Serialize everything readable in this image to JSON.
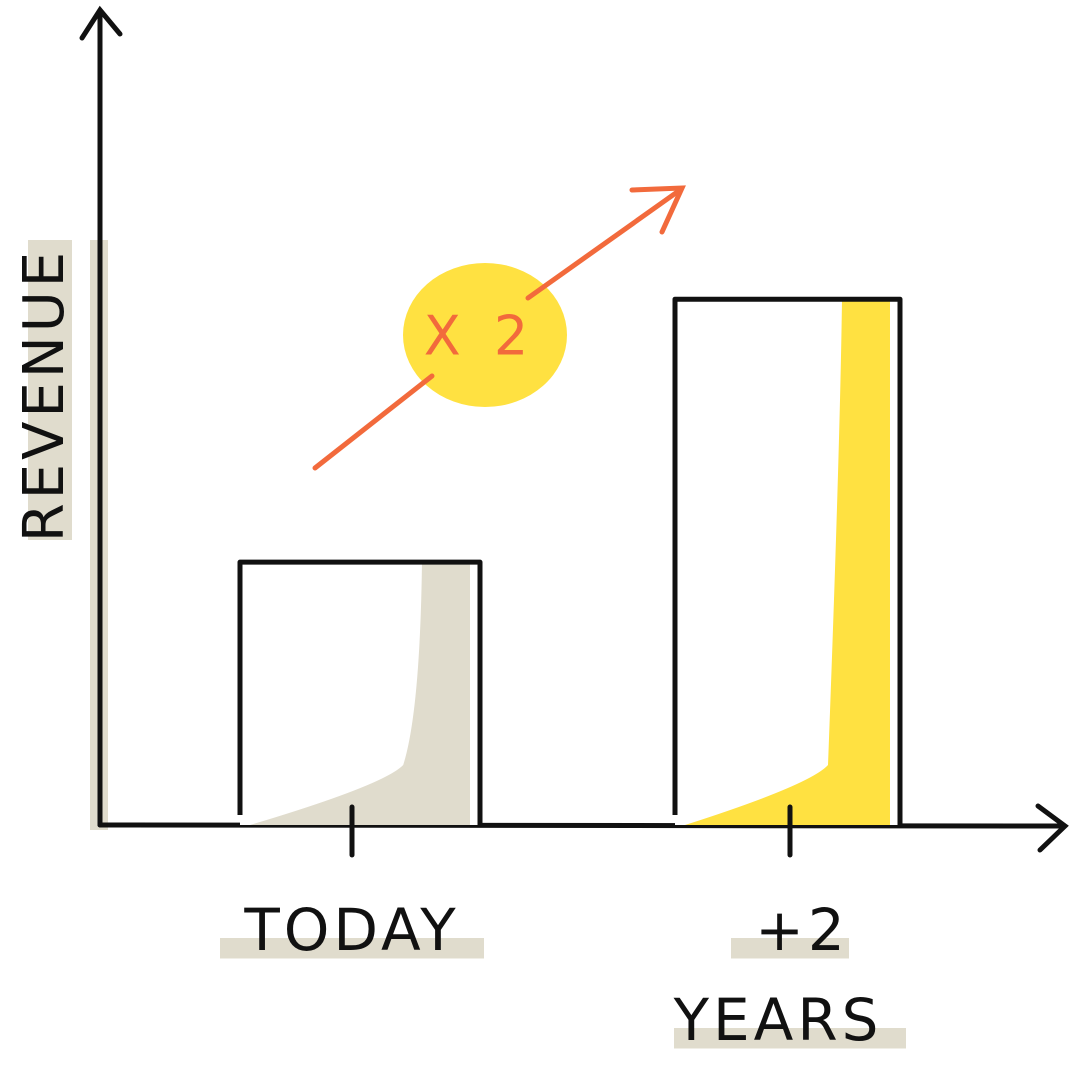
{
  "chart_data": {
    "type": "bar",
    "y_label": "REVENUE",
    "annotation": "X 2",
    "categories": [
      "TODAY",
      "+2 YEARS"
    ],
    "values": [
      1,
      2
    ],
    "colors": [
      "#e0dccd",
      "#ffe141"
    ],
    "annotation_color": "#f26a3c",
    "ylim": [
      0,
      3.1
    ]
  }
}
